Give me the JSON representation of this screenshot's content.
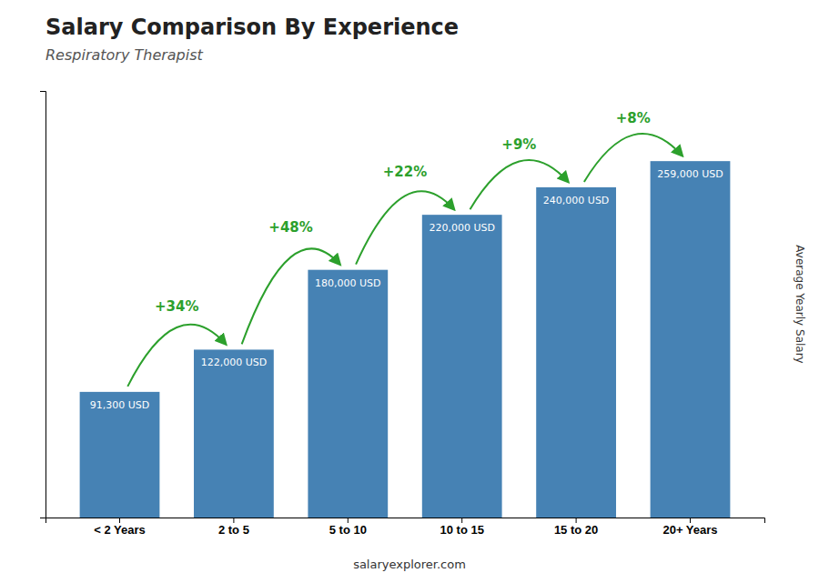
{
  "chart_data": {
    "type": "bar",
    "title": "Salary Comparison By Experience",
    "subtitle": "Respiratory Therapist",
    "ylabel": "Average Yearly Salary",
    "footer": "salaryexplorer.com",
    "categories": [
      "< 2 Years",
      "2 to 5",
      "5 to 10",
      "10 to 15",
      "15 to 20",
      "20+ Years"
    ],
    "values": [
      91300,
      122000,
      180000,
      220000,
      240000,
      259000
    ],
    "value_labels": [
      "91,300 USD",
      "122,000 USD",
      "180,000 USD",
      "220,000 USD",
      "240,000 USD",
      "259,000 USD"
    ],
    "data_labels": true,
    "annotations": [
      "+34%",
      "+48%",
      "+22%",
      "+9%",
      "+8%"
    ],
    "ylim": [
      0,
      310000
    ],
    "tick_labels": "x"
  }
}
